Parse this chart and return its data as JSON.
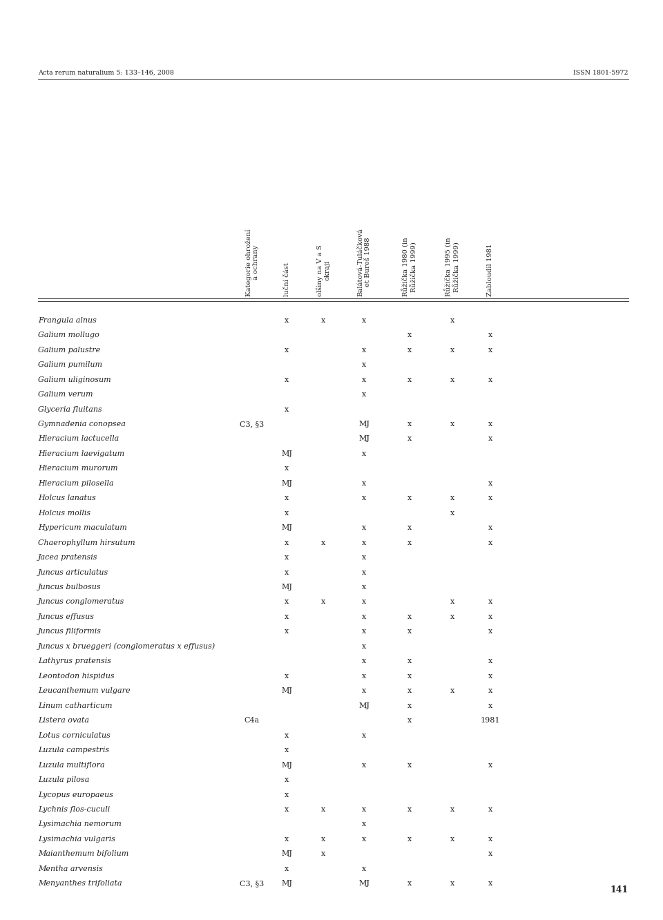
{
  "header_left": "Acta rerum naturalium 5: 133–146, 2008",
  "header_right": "ISSN 1801-5972",
  "page_number": "141",
  "col_headers": [
    "Kategorie ohrožení\na ochrany",
    "luční část",
    "olšiny na V a S\nokraji",
    "Balátová-Tuláčková\net Bureš 1988",
    "Růžička 1980 (in\nRůžička 1999)",
    "Růžička 1995 (in\nRůžička 1999)",
    "Zabloudil 1981"
  ],
  "rows": [
    {
      "name": "Frangula alnus",
      "cols": [
        "",
        "x",
        "x",
        "x",
        "",
        "x",
        ""
      ]
    },
    {
      "name": "Galium mollugo",
      "cols": [
        "",
        "",
        "",
        "",
        "x",
        "",
        "x"
      ]
    },
    {
      "name": "Galium palustre",
      "cols": [
        "",
        "x",
        "",
        "x",
        "x",
        "x",
        "x"
      ]
    },
    {
      "name": "Galium pumilum",
      "cols": [
        "",
        "",
        "",
        "x",
        "",
        "",
        ""
      ]
    },
    {
      "name": "Galium uliginosum",
      "cols": [
        "",
        "x",
        "",
        "x",
        "x",
        "x",
        "x"
      ]
    },
    {
      "name": "Galium verum",
      "cols": [
        "",
        "",
        "",
        "x",
        "",
        "",
        ""
      ]
    },
    {
      "name": "Glyceria fluitans",
      "cols": [
        "",
        "x",
        "",
        "",
        "",
        "",
        ""
      ]
    },
    {
      "name": "Gymnadenia conopsea",
      "cols": [
        "C3, §3",
        "",
        "",
        "MJ",
        "x",
        "x",
        "x"
      ]
    },
    {
      "name": "Hieracium lactucella",
      "cols": [
        "",
        "",
        "",
        "MJ",
        "x",
        "",
        "x"
      ]
    },
    {
      "name": "Hieracium laevigatum",
      "cols": [
        "",
        "MJ",
        "",
        "x",
        "",
        "",
        ""
      ]
    },
    {
      "name": "Hieracium murorum",
      "cols": [
        "",
        "x",
        "",
        "",
        "",
        "",
        ""
      ]
    },
    {
      "name": "Hieracium pilosella",
      "cols": [
        "",
        "MJ",
        "",
        "x",
        "",
        "",
        "x"
      ]
    },
    {
      "name": "Holcus lanatus",
      "cols": [
        "",
        "x",
        "",
        "x",
        "x",
        "x",
        "x"
      ]
    },
    {
      "name": "Holcus mollis",
      "cols": [
        "",
        "x",
        "",
        "",
        "",
        "x",
        ""
      ]
    },
    {
      "name": "Hypericum maculatum",
      "cols": [
        "",
        "MJ",
        "",
        "x",
        "x",
        "",
        "x"
      ]
    },
    {
      "name": "Chaerophyllum hirsutum",
      "cols": [
        "",
        "x",
        "x",
        "x",
        "x",
        "",
        "x"
      ]
    },
    {
      "name": "Jacea pratensis",
      "cols": [
        "",
        "x",
        "",
        "x",
        "",
        "",
        ""
      ]
    },
    {
      "name": "Juncus articulatus",
      "cols": [
        "",
        "x",
        "",
        "x",
        "",
        "",
        ""
      ]
    },
    {
      "name": "Juncus bulbosus",
      "cols": [
        "",
        "MJ",
        "",
        "x",
        "",
        "",
        ""
      ]
    },
    {
      "name": "Juncus conglomeratus",
      "cols": [
        "",
        "x",
        "x",
        "x",
        "",
        "x",
        "x"
      ]
    },
    {
      "name": "Juncus effusus",
      "cols": [
        "",
        "x",
        "",
        "x",
        "x",
        "x",
        "x"
      ]
    },
    {
      "name": "Juncus filiformis",
      "cols": [
        "",
        "x",
        "",
        "x",
        "x",
        "",
        "x"
      ]
    },
    {
      "name": "Juncus x brueggeri (conglomeratus x effusus)",
      "cols": [
        "",
        "",
        "",
        "x",
        "",
        "",
        ""
      ]
    },
    {
      "name": "Lathyrus pratensis",
      "cols": [
        "",
        "",
        "",
        "x",
        "x",
        "",
        "x"
      ]
    },
    {
      "name": "Leontodon hispidus",
      "cols": [
        "",
        "x",
        "",
        "x",
        "x",
        "",
        "x"
      ]
    },
    {
      "name": "Leucanthemum vulgare",
      "cols": [
        "",
        "MJ",
        "",
        "x",
        "x",
        "x",
        "x"
      ]
    },
    {
      "name": "Linum catharticum",
      "cols": [
        "",
        "",
        "",
        "MJ",
        "x",
        "",
        "x"
      ]
    },
    {
      "name": "Listera ovata",
      "cols": [
        "C4a",
        "",
        "",
        "",
        "x",
        "",
        "1981"
      ]
    },
    {
      "name": "Lotus corniculatus",
      "cols": [
        "",
        "x",
        "",
        "x",
        "",
        "",
        ""
      ]
    },
    {
      "name": "Luzula campestris",
      "cols": [
        "",
        "x",
        "",
        "",
        "",
        "",
        ""
      ]
    },
    {
      "name": "Luzula multiflora",
      "cols": [
        "",
        "MJ",
        "",
        "x",
        "x",
        "",
        "x"
      ]
    },
    {
      "name": "Luzula pilosa",
      "cols": [
        "",
        "x",
        "",
        "",
        "",
        "",
        ""
      ]
    },
    {
      "name": "Lycopus europaeus",
      "cols": [
        "",
        "x",
        "",
        "",
        "",
        "",
        ""
      ]
    },
    {
      "name": "Lychnis flos-cuculi",
      "cols": [
        "",
        "x",
        "x",
        "x",
        "x",
        "x",
        "x"
      ]
    },
    {
      "name": "Lysimachia nemorum",
      "cols": [
        "",
        "",
        "",
        "x",
        "",
        "",
        ""
      ]
    },
    {
      "name": "Lysimachia vulgaris",
      "cols": [
        "",
        "x",
        "x",
        "x",
        "x",
        "x",
        "x"
      ]
    },
    {
      "name": "Maianthemum bifolium",
      "cols": [
        "",
        "MJ",
        "x",
        "",
        "",
        "",
        "x"
      ]
    },
    {
      "name": "Mentha arvensis",
      "cols": [
        "",
        "x",
        "",
        "x",
        "",
        "",
        ""
      ]
    },
    {
      "name": "Menyanthes trifoliata",
      "cols": [
        "C3, §3",
        "MJ",
        "",
        "MJ",
        "x",
        "x",
        "x"
      ]
    }
  ],
  "bg_color": "#ffffff",
  "text_color": "#222222",
  "line_color": "#444444",
  "font_size": 8.0,
  "header_font_size": 7.2,
  "page_header_font_size": 6.8
}
